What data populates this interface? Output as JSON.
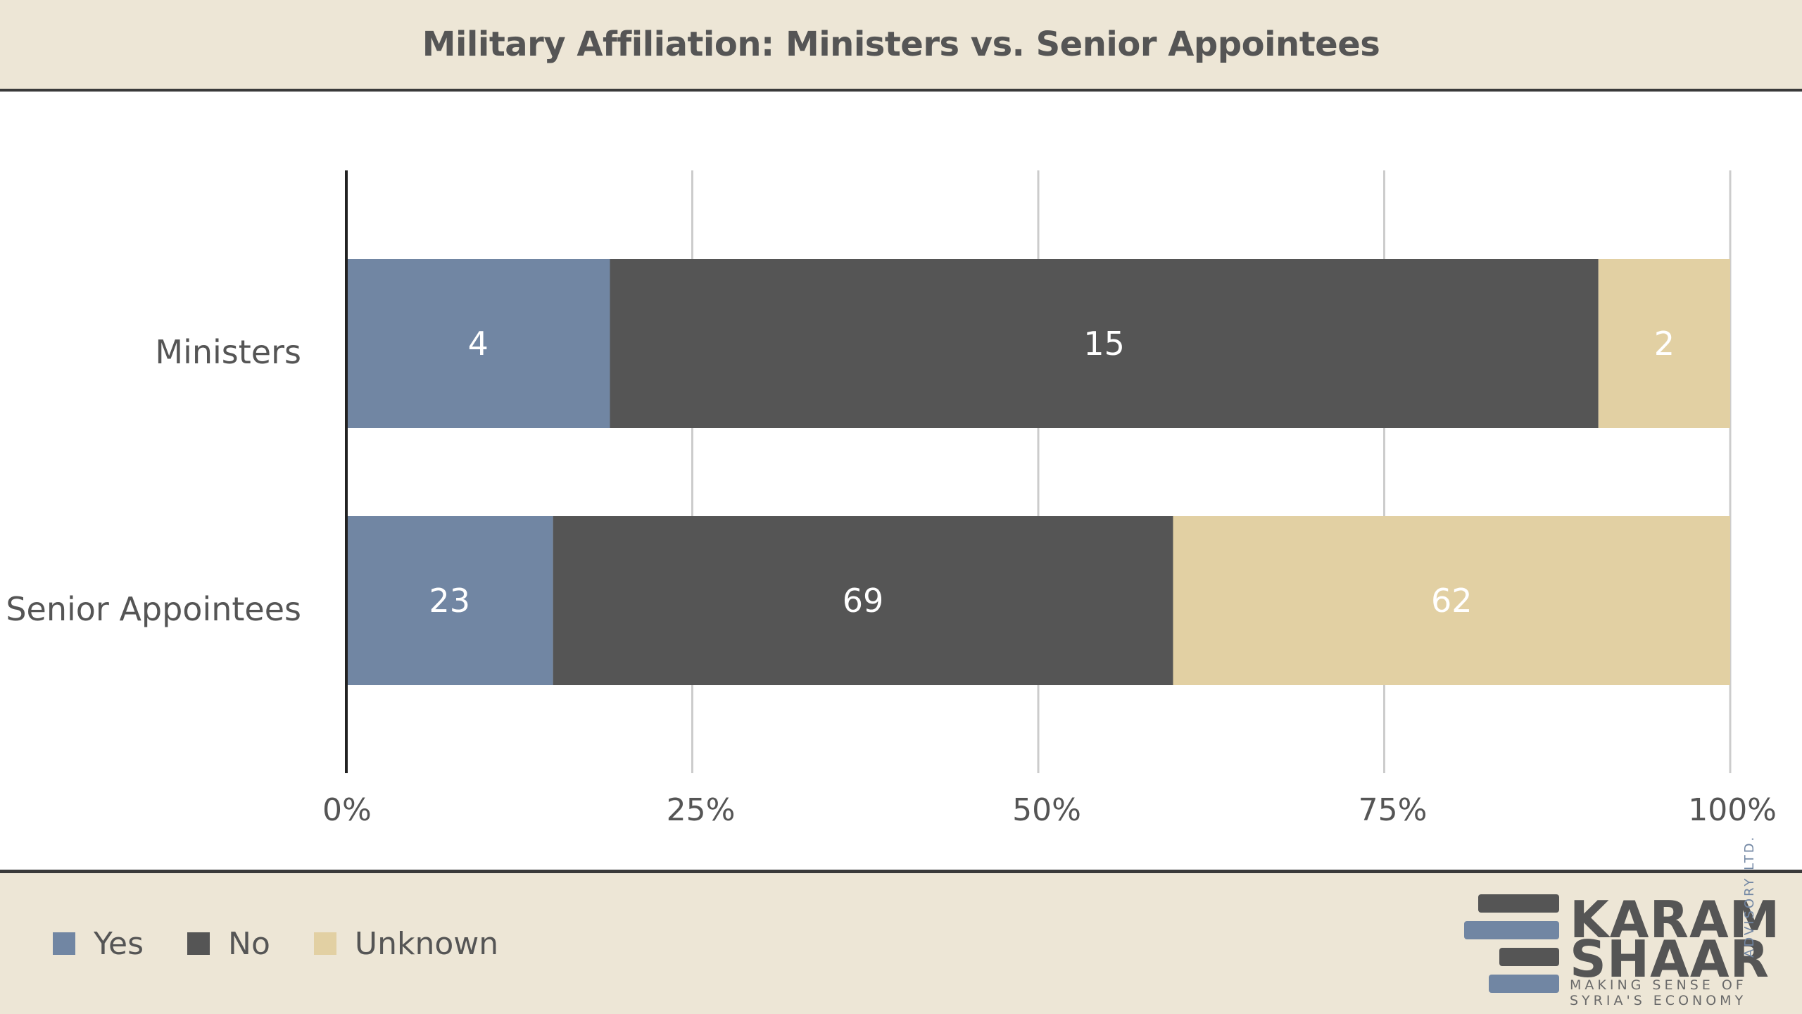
{
  "header": {
    "title": "Military Affiliation: Ministers vs. Senior Appointees"
  },
  "chart_data": {
    "type": "bar",
    "orientation": "horizontal",
    "stacked": "percent",
    "title": "Military Affiliation: Ministers vs. Senior Appointees",
    "categories": [
      "Ministers",
      "Senior Appointees"
    ],
    "series": [
      {
        "name": "Yes",
        "values": [
          4,
          23
        ],
        "color": "#7186a3"
      },
      {
        "name": "No",
        "values": [
          15,
          69
        ],
        "color": "#555555"
      },
      {
        "name": "Unknown",
        "values": [
          2,
          62
        ],
        "color": "#e2d0a3"
      }
    ],
    "xticks": [
      "0%",
      "25%",
      "50%",
      "75%",
      "100%"
    ],
    "xlim": [
      0,
      100
    ],
    "grid": "vertical",
    "legend": "bottom-left"
  },
  "legend": {
    "items": [
      {
        "label": "Yes",
        "color": "#7186a3"
      },
      {
        "label": "No",
        "color": "#555555"
      },
      {
        "label": "Unknown",
        "color": "#e2d0a3"
      }
    ]
  },
  "logo": {
    "line1": "KARAM",
    "line2": "SHAAR",
    "tagline1": "MAKING SENSE OF",
    "tagline2": "SYRIA'S ECONOMY",
    "suffix": "ADVISORY LTD.",
    "colors": {
      "dark": "#555555",
      "blue": "#7186a3"
    }
  }
}
